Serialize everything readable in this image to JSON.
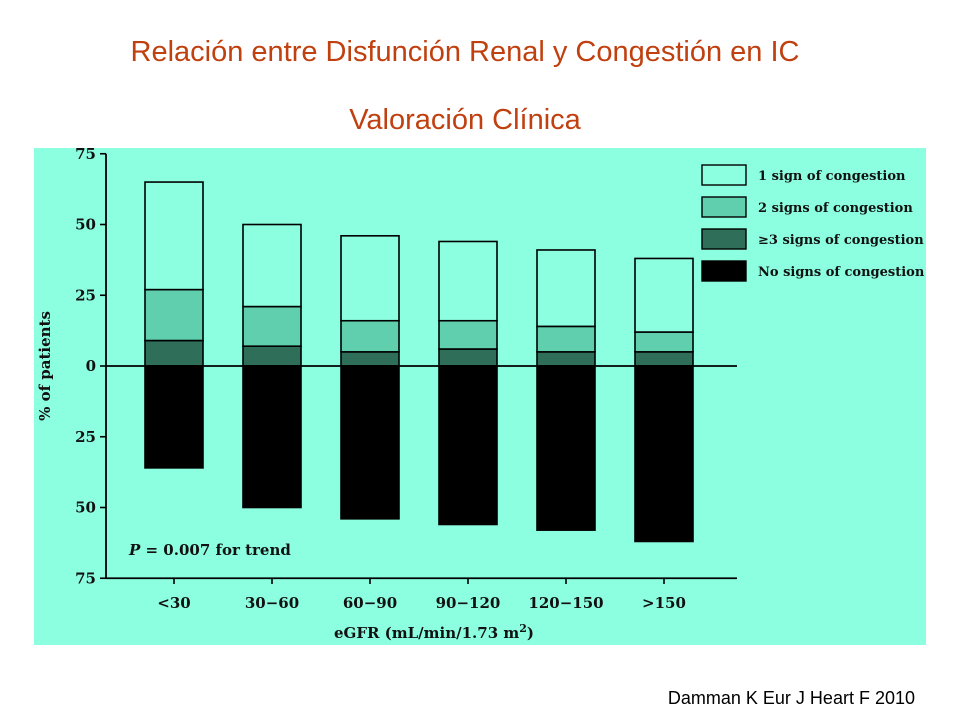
{
  "slide": {
    "title_line1": "Relación entre Disfunción Renal y Congestión en IC",
    "title_line2": "Valoración Clínica",
    "citation": "Damman K Eur J Heart F 2010"
  },
  "colors": {
    "panel_bg": "#8cffe0",
    "title": "#c0400f",
    "one_sign": "#8cffe0",
    "two_signs": "#5fcfae",
    "three_signs": "#2f6e58",
    "no_signs": "#000000"
  },
  "chart_data": {
    "type": "bar",
    "categories": [
      "<30",
      "30−60",
      "60−90",
      "90−120",
      "120−150",
      ">150"
    ],
    "series": [
      {
        "name": "1 sign of congestion",
        "values": [
          38,
          29,
          30,
          28,
          27,
          26
        ]
      },
      {
        "name": "2 signs of congestion",
        "values": [
          18,
          14,
          11,
          10,
          9,
          7
        ]
      },
      {
        "name": "≥3 signs of congestion",
        "values": [
          9,
          7,
          5,
          6,
          5,
          5
        ]
      },
      {
        "name": "No signs of congestion",
        "values": [
          36,
          50,
          54,
          56,
          58,
          62
        ]
      }
    ],
    "stacking": "positive-up for congestion signs, no-signs downward from 0",
    "yticks": [
      "75",
      "50",
      "25",
      "0",
      "25",
      "50",
      "75"
    ],
    "ylim": [
      -75,
      75
    ],
    "ylabel": "% of patients",
    "xlabel": "eGFR (mL/min/1.73 m",
    "xlabel_sup": "2",
    "xlabel_end": ")",
    "annotation": "P = 0.007 for trend",
    "legend_position": "top-right"
  }
}
